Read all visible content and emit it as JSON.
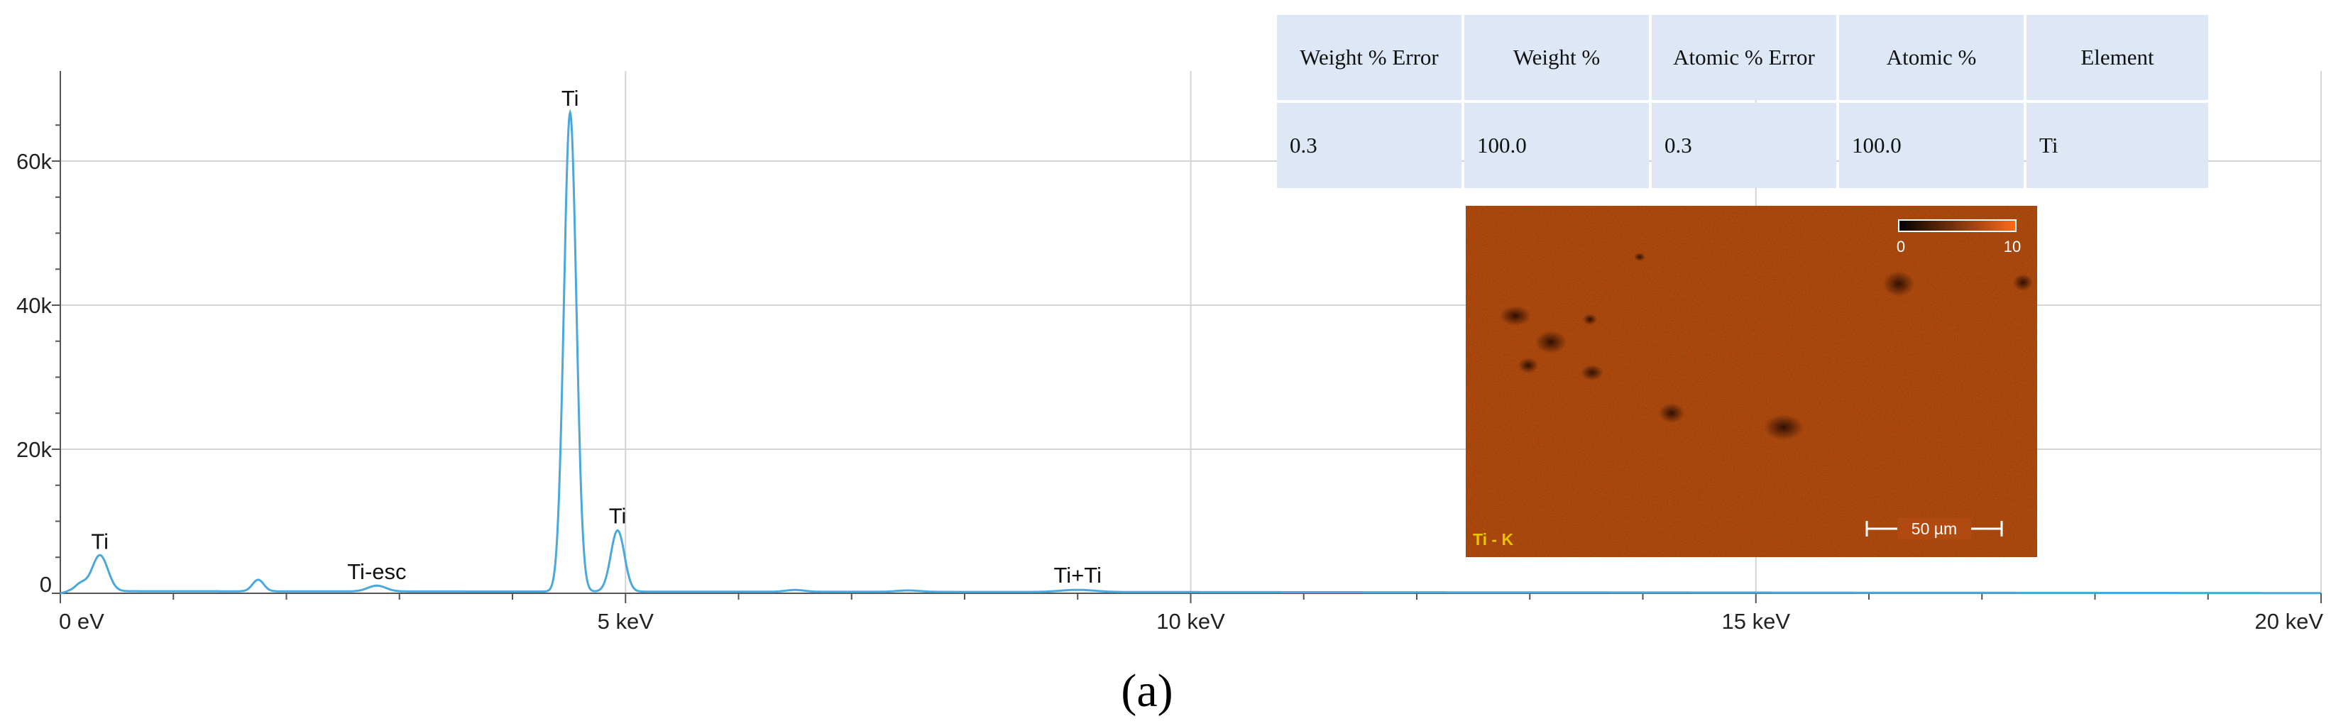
{
  "chart_data": {
    "type": "line",
    "title": "",
    "xlabel": "",
    "ylabel": "",
    "xlim": [
      0,
      20
    ],
    "ylim": [
      -2000,
      70000
    ],
    "x_ticks": [
      {
        "value": 0,
        "label": "0 eV"
      },
      {
        "value": 5,
        "label": "5 keV"
      },
      {
        "value": 10,
        "label": "10 keV"
      },
      {
        "value": 15,
        "label": "15 keV"
      },
      {
        "value": 20,
        "label": "20 keV"
      }
    ],
    "y_ticks": [
      {
        "value": 0,
        "label": "0"
      },
      {
        "value": 20000,
        "label": "20k"
      },
      {
        "value": 40000,
        "label": "40k"
      },
      {
        "value": 60000,
        "label": "60k"
      }
    ],
    "grid": true,
    "line_color": "#4aa8dc",
    "series": [
      {
        "name": "",
        "baseline": 300,
        "peaks": [
          {
            "x": 0.35,
            "y": 5000,
            "width": 0.07
          },
          {
            "x": 0.18,
            "y": 1000,
            "width": 0.05
          },
          {
            "x": 1.75,
            "y": 1600,
            "width": 0.05
          },
          {
            "x": 2.8,
            "y": 800,
            "width": 0.08
          },
          {
            "x": 4.51,
            "y": 66500,
            "width": 0.055
          },
          {
            "x": 4.93,
            "y": 8500,
            "width": 0.06
          },
          {
            "x": 6.5,
            "y": 250,
            "width": 0.08
          },
          {
            "x": 7.5,
            "y": 200,
            "width": 0.1
          },
          {
            "x": 9.0,
            "y": 300,
            "width": 0.15
          }
        ]
      }
    ],
    "annotations": [
      {
        "text": "Ti",
        "x": 0.35,
        "y": 5000
      },
      {
        "text": "Ti-esc",
        "x": 2.8,
        "y": 800
      },
      {
        "text": "Ti",
        "x": 4.51,
        "y": 66500
      },
      {
        "text": "Ti",
        "x": 4.93,
        "y": 8500
      },
      {
        "text": "Ti+Ti",
        "x": 9.0,
        "y": 300
      }
    ]
  },
  "quant_table": {
    "headers": [
      "Weight % Error",
      "Weight %",
      "Atomic % Error",
      "Atomic %",
      "Element"
    ],
    "rows": [
      [
        "0.3",
        "100.0",
        "0.3",
        "100.0",
        "Ti"
      ]
    ]
  },
  "map_inset": {
    "label": "Ti - K",
    "scale_min": "0",
    "scale_max": "10",
    "scale_bar": "50 µm",
    "background_color": "#b04a10",
    "label_color": "#e8c400"
  },
  "panel_label": "(a)"
}
